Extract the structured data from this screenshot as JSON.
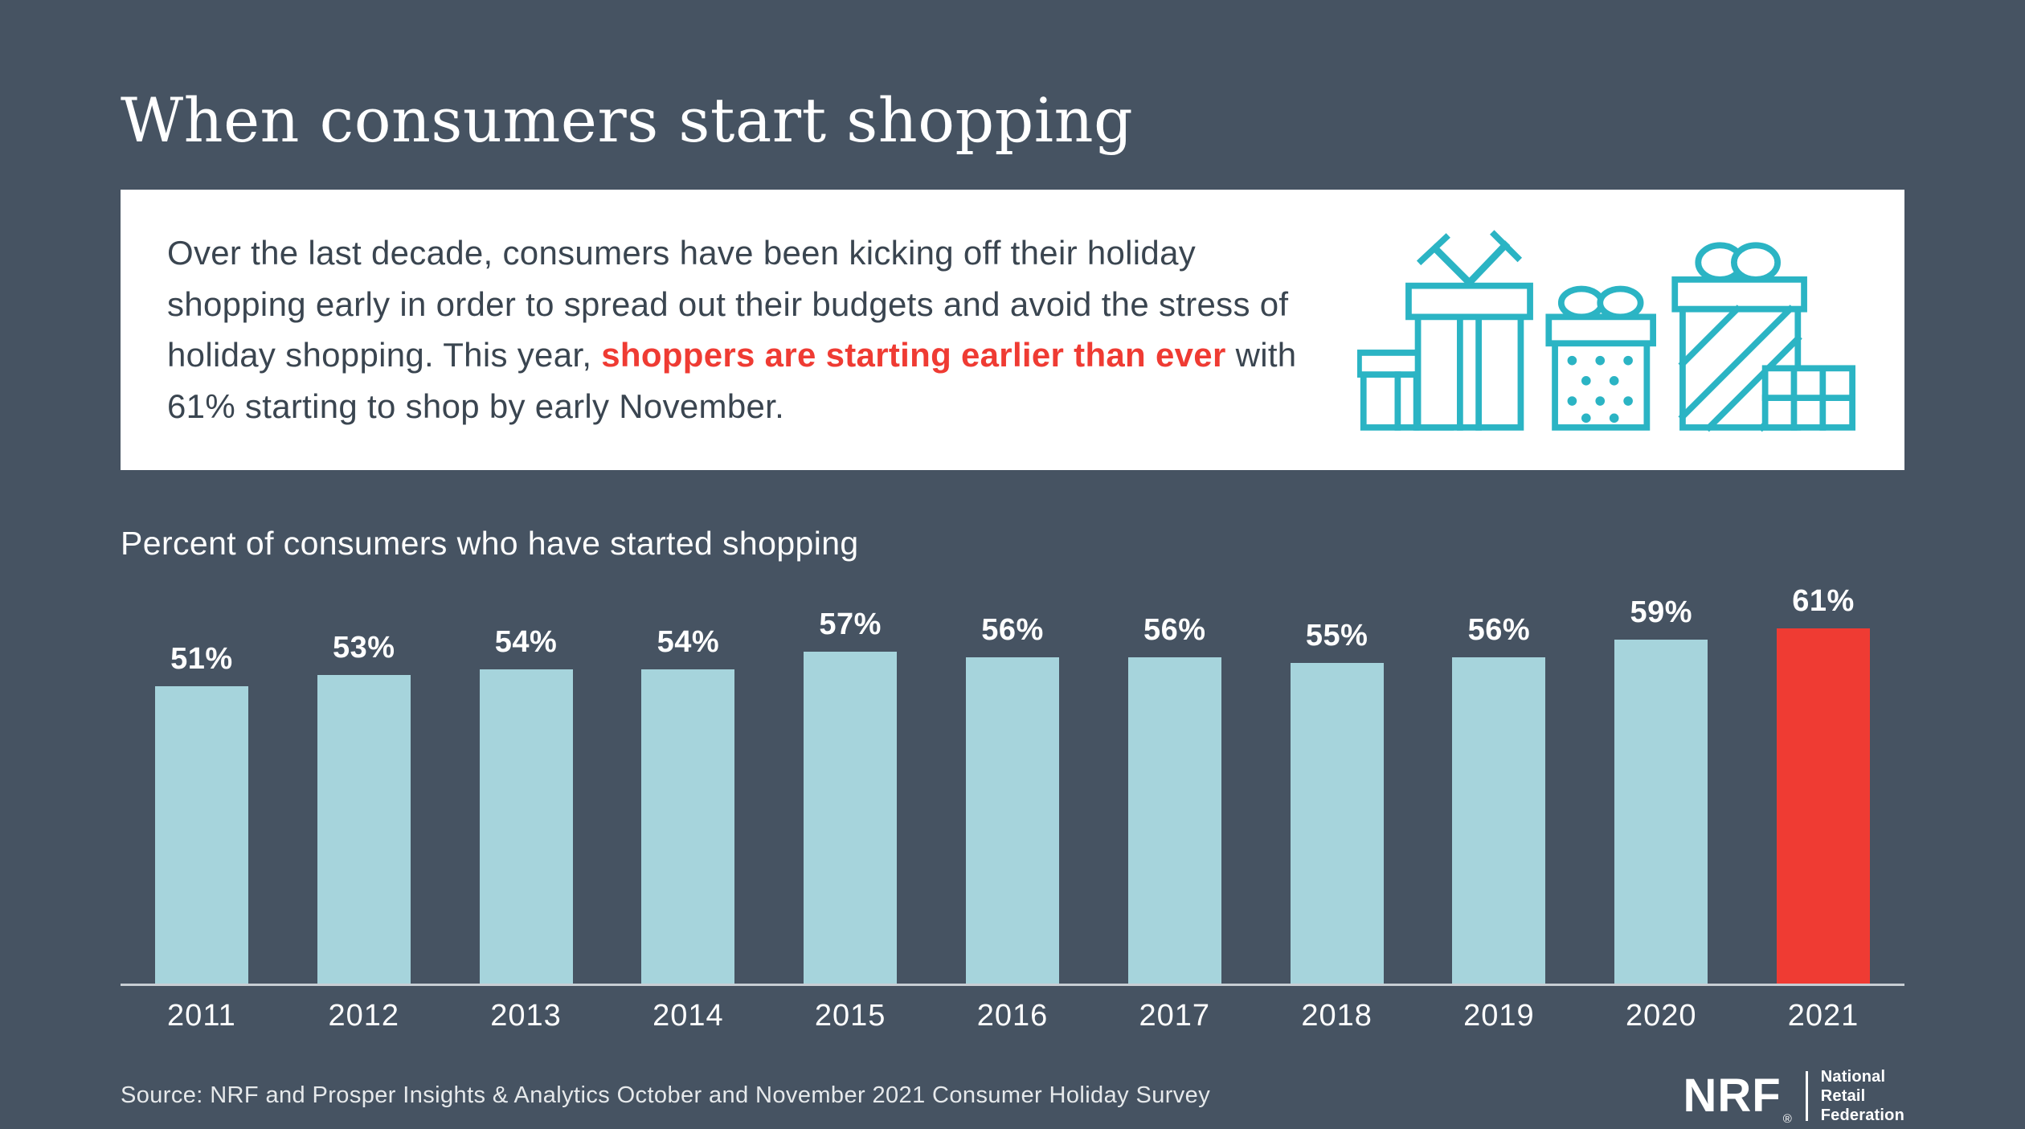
{
  "page": {
    "title": "When consumers start shopping",
    "intro": {
      "pre": "Over the last decade, consumers have been kicking off their holiday shopping early in order to spread out their budgets and avoid the stress of holiday shopping. This year, ",
      "highlight": "shoppers are starting earlier than ever",
      "post": " with 61% starting to shop by early November."
    },
    "chart_subtitle": "Percent of consumers who have started shopping",
    "source": "Source: NRF and Prosper Insights & Analytics October and November 2021 Consumer Holiday Survey",
    "logo": {
      "abbr": "NRF",
      "reg": "®",
      "lines": [
        "National",
        "Retail",
        "Federation"
      ]
    }
  },
  "colors": {
    "background": "#465362",
    "bar": "#A6D4DC",
    "highlight": "#EF3B33",
    "teal": "#2BB4C4",
    "card_text": "#3A4550",
    "axis": "#C8CED4"
  },
  "chart_data": {
    "type": "bar",
    "title": "Percent of consumers who have started shopping",
    "categories": [
      "2011",
      "2012",
      "2013",
      "2014",
      "2015",
      "2016",
      "2017",
      "2018",
      "2019",
      "2020",
      "2021"
    ],
    "values": [
      51,
      53,
      54,
      54,
      57,
      56,
      56,
      55,
      56,
      59,
      61
    ],
    "labels": [
      "51%",
      "53%",
      "54%",
      "54%",
      "57%",
      "56%",
      "56%",
      "55%",
      "56%",
      "59%",
      "61%"
    ],
    "xlabel": "",
    "ylabel": "",
    "ylim": [
      0,
      65
    ],
    "grid": false,
    "legend": "none",
    "bar_color": "#A6D4DC",
    "highlight_index": 10,
    "highlight_color": "#EF3B33"
  }
}
